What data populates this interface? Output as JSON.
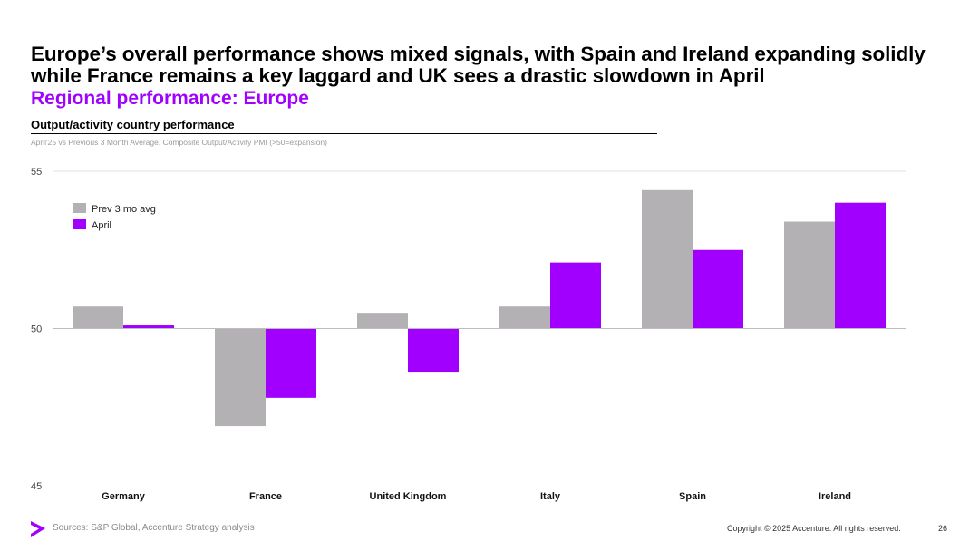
{
  "slide": {
    "headline": "Europe’s overall performance shows mixed signals, with Spain and Ireland expanding solidly while France remains a key laggard and UK sees a drastic slowdown in April",
    "subtitle": "Regional performance: Europe",
    "chart_title": "Output/activity country performance",
    "chart_note": "April'25 vs Previous 3 Month Average, Composite Output/Activity PMI (>50=expansion)",
    "footer_source": "Sources: S&P Global, Accenture Strategy analysis",
    "footer_copyright": "Copyright © 2025 Accenture. All rights reserved.",
    "page_number": "26"
  },
  "colors": {
    "prev": "#b3b1b3",
    "april": "#a100ff",
    "accent": "#a100ff",
    "grid": "#e2e2e2",
    "baseline": "#bdbdbd"
  },
  "icons": {
    "logo": "accenture-greater-than-logo"
  },
  "chart_data": {
    "type": "bar",
    "title": "Output/activity country performance",
    "categories": [
      "Germany",
      "France",
      "United Kingdom",
      "Italy",
      "Spain",
      "Ireland"
    ],
    "series": [
      {
        "name": "Prev 3 mo avg",
        "values": [
          50.7,
          46.9,
          50.5,
          50.7,
          54.4,
          53.4
        ]
      },
      {
        "name": "April",
        "values": [
          50.1,
          47.8,
          48.6,
          52.1,
          52.5,
          54.0
        ]
      }
    ],
    "baseline": 50,
    "ylim": [
      45,
      55
    ],
    "yticks": [
      "45",
      "50",
      "55"
    ],
    "grid": true,
    "legend_position": "top-left"
  }
}
